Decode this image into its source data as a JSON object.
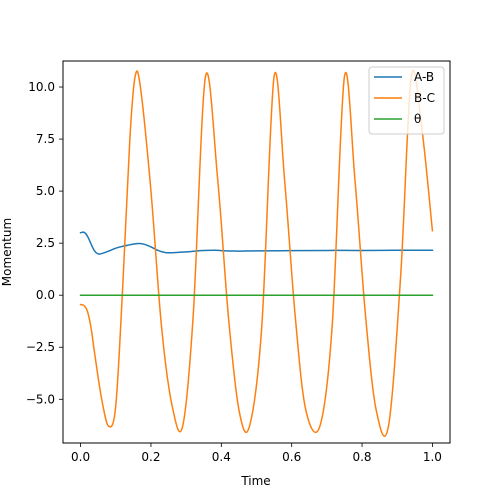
{
  "chart_data": {
    "type": "line",
    "title": "",
    "xlabel": "Time",
    "ylabel": "Momentum",
    "xlim": [
      -0.05,
      1.05
    ],
    "ylim": [
      -7.1,
      11.25
    ],
    "grid": false,
    "legend_position": "top-right",
    "x_ticks": [
      {
        "value": 0.0,
        "label": "0.0"
      },
      {
        "value": 0.2,
        "label": "0.2"
      },
      {
        "value": 0.4,
        "label": "0.4"
      },
      {
        "value": 0.6,
        "label": "0.6"
      },
      {
        "value": 0.8,
        "label": "0.8"
      },
      {
        "value": 1.0,
        "label": "1.0"
      }
    ],
    "y_ticks": [
      {
        "value": -5.0,
        "label": "−5.0"
      },
      {
        "value": -2.5,
        "label": "−2.5"
      },
      {
        "value": 0.0,
        "label": "0.0"
      },
      {
        "value": 2.5,
        "label": "2.5"
      },
      {
        "value": 5.0,
        "label": "5.0"
      },
      {
        "value": 7.5,
        "label": "7.5"
      },
      {
        "value": 10.0,
        "label": "10.0"
      }
    ],
    "series": [
      {
        "name": "A-B",
        "color": "#1f77b4",
        "x": [
          0.0,
          0.01,
          0.02,
          0.03,
          0.04,
          0.05,
          0.06,
          0.08,
          0.1,
          0.12,
          0.14,
          0.16,
          0.18,
          0.2,
          0.22,
          0.24,
          0.26,
          0.3,
          0.34,
          0.38,
          0.4,
          0.44,
          0.5,
          0.6,
          0.7,
          0.8,
          0.9,
          1.0
        ],
        "y": [
          3.0,
          3.02,
          2.82,
          2.45,
          2.12,
          1.98,
          2.0,
          2.12,
          2.26,
          2.35,
          2.42,
          2.48,
          2.45,
          2.32,
          2.15,
          2.05,
          2.04,
          2.08,
          2.14,
          2.16,
          2.14,
          2.12,
          2.13,
          2.14,
          2.15,
          2.15,
          2.16,
          2.16
        ]
      },
      {
        "name": "B-C",
        "color": "#ff7f0e",
        "x": [
          0.0,
          0.01,
          0.02,
          0.03,
          0.04,
          0.06,
          0.08,
          0.1,
          0.12,
          0.14,
          0.155,
          0.17,
          0.2,
          0.23,
          0.26,
          0.29,
          0.32,
          0.355,
          0.39,
          0.42,
          0.45,
          0.48,
          0.515,
          0.55,
          0.58,
          0.61,
          0.64,
          0.68,
          0.715,
          0.75,
          0.78,
          0.81,
          0.84,
          0.875,
          0.91,
          0.94,
          0.97,
          1.0
        ],
        "y": [
          -0.45,
          -0.5,
          -0.8,
          -1.6,
          -2.8,
          -5.0,
          -6.3,
          -5.3,
          0.5,
          7.5,
          10.5,
          10.0,
          5.0,
          -1.5,
          -5.3,
          -6.3,
          -1.0,
          10.5,
          5.5,
          -1.0,
          -5.5,
          -6.3,
          -1.5,
          10.5,
          5.5,
          -1.0,
          -5.5,
          -6.3,
          -1.5,
          10.5,
          5.5,
          -1.0,
          -5.5,
          -6.3,
          1.0,
          10.5,
          8.0,
          3.1
        ]
      },
      {
        "name": "θ",
        "color": "#2ca02c",
        "x": [
          0.0,
          1.0
        ],
        "y": [
          0.0,
          0.0
        ]
      }
    ]
  }
}
